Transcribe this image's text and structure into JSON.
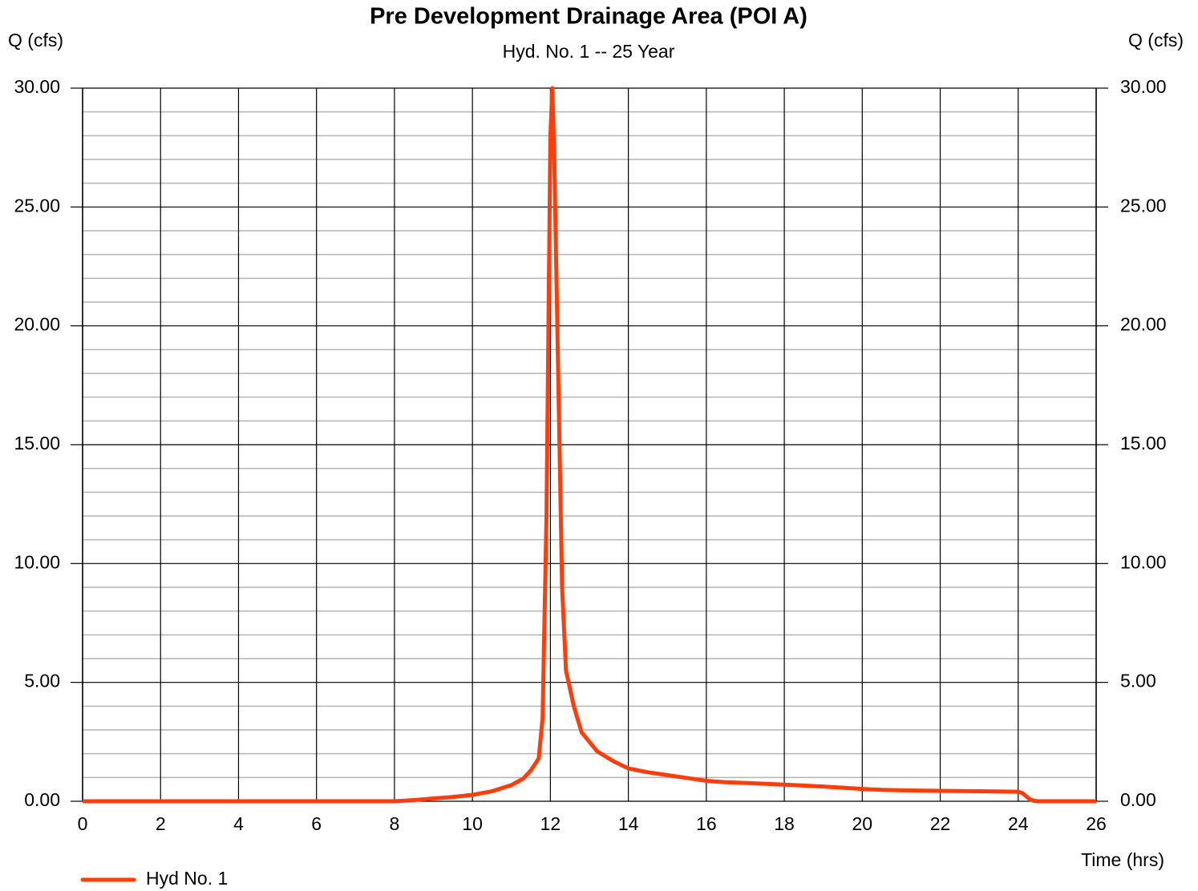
{
  "chart_data": {
    "type": "line",
    "title": "Pre Development Drainage Area (POI A)",
    "subtitle": "Hyd. No. 1 -- 25 Year",
    "ylabel": "Q (cfs)",
    "y2label": "Q (cfs)",
    "xlabel": "Time (hrs)",
    "xlim": [
      0,
      26
    ],
    "xticks": [
      0,
      2,
      4,
      6,
      8,
      10,
      12,
      14,
      16,
      18,
      20,
      22,
      24,
      26
    ],
    "ylim": [
      0,
      30
    ],
    "yticks": [
      {
        "value": 0,
        "label": "0.00"
      },
      {
        "value": 5,
        "label": "5.00"
      },
      {
        "value": 10,
        "label": "10.00"
      },
      {
        "value": 15,
        "label": "15.00"
      },
      {
        "value": 20,
        "label": "20.00"
      },
      {
        "value": 25,
        "label": "25.00"
      },
      {
        "value": 30,
        "label": "30.00"
      }
    ],
    "y_minor_ticks": [
      1,
      2,
      3,
      4,
      6,
      7,
      8,
      9,
      11,
      12,
      13,
      14,
      16,
      17,
      18,
      19,
      21,
      22,
      23,
      24,
      26,
      27,
      28,
      29
    ],
    "y2lim": [
      0,
      30
    ],
    "y2ticks": [
      {
        "value": 0,
        "label": "0.00"
      },
      {
        "value": 5,
        "label": "5.00"
      },
      {
        "value": 10,
        "label": "10.00"
      },
      {
        "value": 15,
        "label": "15.00"
      },
      {
        "value": 20,
        "label": "20.00"
      },
      {
        "value": 25,
        "label": "25.00"
      },
      {
        "value": 30,
        "label": "30.00"
      }
    ],
    "grid": true,
    "legend": "bottom-left",
    "x": [
      0,
      8,
      8.5,
      9,
      9.5,
      10,
      10.5,
      11,
      11.3,
      11.5,
      11.7,
      11.8,
      11.9,
      12.0,
      12.05,
      12.1,
      12.2,
      12.3,
      12.4,
      12.6,
      12.8,
      13.2,
      13.6,
      14.0,
      14.5,
      15,
      15.5,
      16,
      16.5,
      17,
      18,
      19,
      20,
      20.5,
      21,
      22,
      23,
      24,
      24.1,
      24.3,
      24.4,
      24.5,
      26
    ],
    "series": [
      {
        "name": "Hyd No. 1",
        "color": "#ff3d0a",
        "values": [
          0,
          0,
          0.05,
          0.12,
          0.18,
          0.27,
          0.42,
          0.68,
          0.95,
          1.3,
          1.8,
          3.5,
          12,
          28,
          30,
          27,
          18,
          9,
          5.5,
          4.0,
          2.9,
          2.1,
          1.7,
          1.38,
          1.22,
          1.1,
          0.98,
          0.86,
          0.8,
          0.77,
          0.7,
          0.62,
          0.52,
          0.48,
          0.46,
          0.44,
          0.42,
          0.4,
          0.35,
          0.08,
          0.02,
          0,
          0
        ]
      }
    ]
  }
}
